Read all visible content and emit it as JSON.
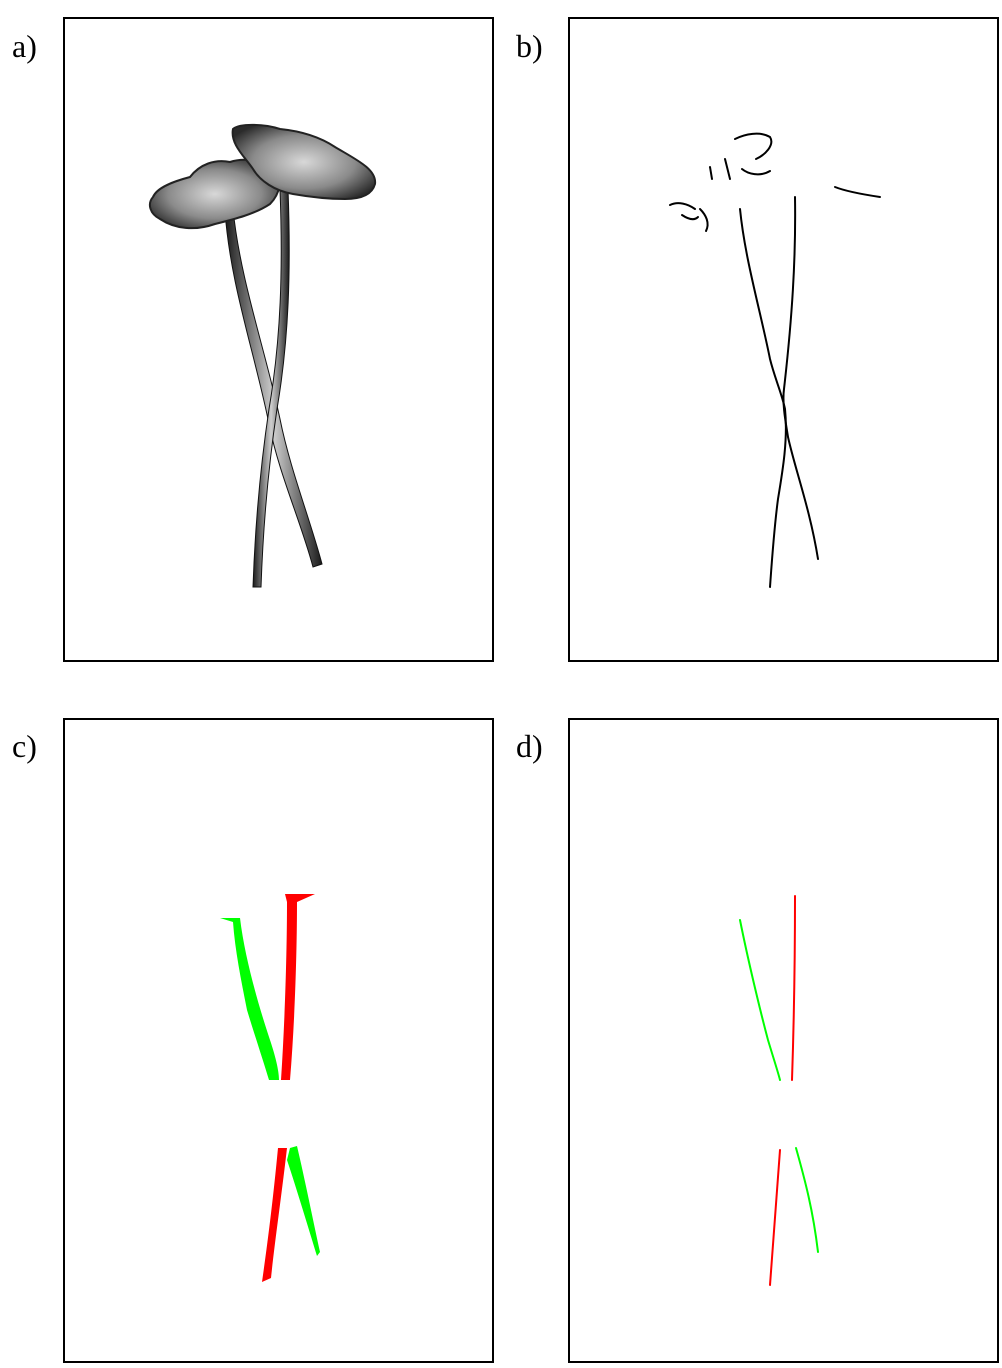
{
  "figure": {
    "panels": [
      {
        "label": "a)",
        "content": "grayscale-flower-image"
      },
      {
        "label": "b)",
        "content": "edge-map"
      },
      {
        "label": "c)",
        "content": "segmented-stems"
      },
      {
        "label": "d)",
        "content": "stem-centerlines"
      }
    ]
  },
  "colors": {
    "frame": "#000000",
    "edge": "#000000",
    "stem_a": "#ff0000",
    "stem_b": "#00ff00",
    "flower_dark": "#2b2b2b",
    "flower_light": "#bdbdbd"
  }
}
